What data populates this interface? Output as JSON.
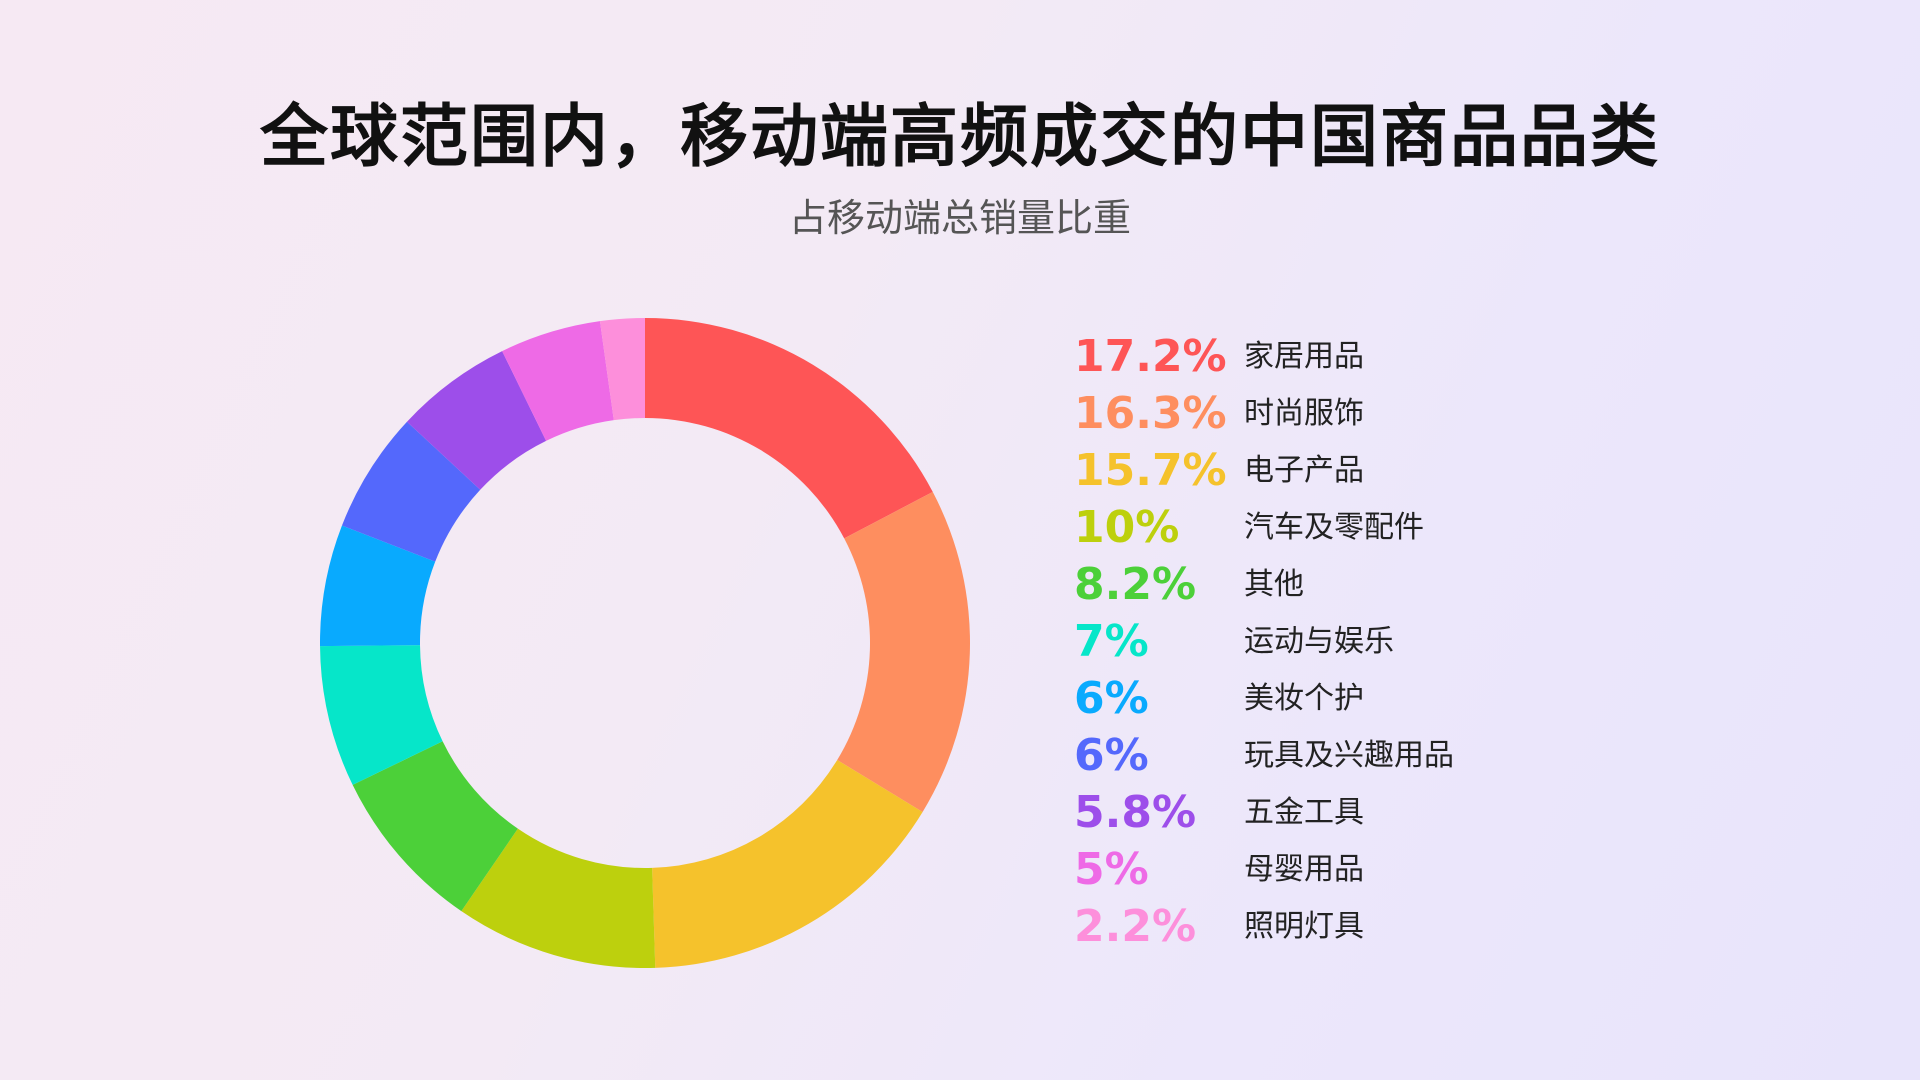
{
  "header": {
    "title": "全球范围内，移动端高频成交的中国商品品类",
    "subtitle": "占移动端总销量比重"
  },
  "chart_data": {
    "type": "pie",
    "variant": "donut",
    "title": "全球范围内，移动端高频成交的中国商品品类",
    "subtitle": "占移动端总销量比重",
    "unit": "%",
    "categories": [
      "家居用品",
      "时尚服饰",
      "电子产品",
      "汽车及零配件",
      "其他",
      "运动与娱乐",
      "美妆个护",
      "玩具及兴趣用品",
      "五金工具",
      "母婴用品",
      "照明灯具"
    ],
    "values": [
      17.2,
      16.3,
      15.7,
      10,
      8.2,
      7,
      6,
      6,
      5.8,
      5,
      2.2
    ],
    "labels": [
      "17.2%",
      "16.3%",
      "15.7%",
      "10%",
      "8.2%",
      "7%",
      "6%",
      "6%",
      "5.8%",
      "5%",
      "2.2%"
    ],
    "colors": [
      "#fe5556",
      "#fe8e5f",
      "#f5c22c",
      "#bdd00d",
      "#4cd039",
      "#06e6c9",
      "#09aafe",
      "#5468fc",
      "#9d4eea",
      "#ee6ae6",
      "#fd8fdb"
    ],
    "legend_position": "right"
  }
}
